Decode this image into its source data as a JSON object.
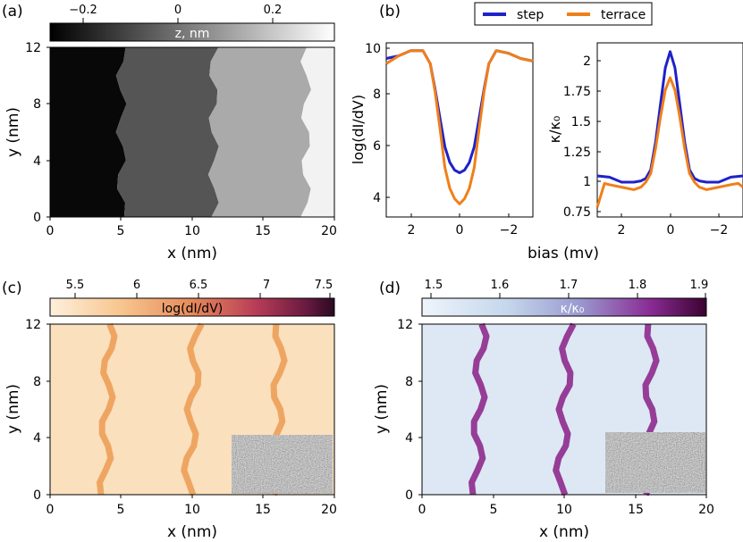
{
  "panel_labels": [
    "(a)",
    "(b)",
    "(c)",
    "(d)"
  ],
  "colors": {
    "step": "#1f22c8",
    "terrace": "#f07f1a",
    "colorbar_c_low": "#fbe7cc",
    "colorbar_c_high": "#2a0a20",
    "colorbar_d_low": "#eef4fb",
    "colorbar_d_high": "#3b0230"
  },
  "chart_data": [
    {
      "type": "heatmap",
      "panel": "(a)",
      "xlabel": "x (nm)",
      "ylabel": "y (nm)",
      "xlim": [
        0,
        20
      ],
      "ylim": [
        0,
        12
      ],
      "xticks": [
        "0",
        "5",
        "10",
        "15",
        "20"
      ],
      "yticks": [
        "0",
        "4",
        "8",
        "12"
      ],
      "colorbar": {
        "label": "z, nm",
        "range": [
          -0.3,
          0.3
        ],
        "ticks": [
          "−0.2",
          "0",
          "0.2"
        ],
        "colormap": "gray"
      },
      "terraces": [
        {
          "x_from": 0,
          "x_to": 5,
          "z": -0.28
        },
        {
          "x_from": 5,
          "x_to": 11.5,
          "z": -0.1
        },
        {
          "x_from": 11.5,
          "x_to": 18,
          "z": 0.1
        },
        {
          "x_from": 18,
          "x_to": 20,
          "z": 0.27
        }
      ]
    },
    {
      "type": "line",
      "panel": "(b) left",
      "ylabel": "log(dI/dV)",
      "xlabel": "bias (mv)",
      "xlim": [
        3,
        -3
      ],
      "ylim": [
        3.3,
        10
      ],
      "xticks": [
        "2",
        "0",
        "−2"
      ],
      "yticks": [
        "4",
        "6",
        "8",
        "10"
      ],
      "legend_position": "top",
      "series": [
        {
          "name": "step",
          "x": [
            3,
            2.5,
            2,
            1.5,
            1.2,
            1,
            0.8,
            0.6,
            0.4,
            0.2,
            0,
            -0.2,
            -0.4,
            -0.6,
            -0.8,
            -1,
            -1.2,
            -1.5,
            -2,
            -2.5,
            -3
          ],
          "values": [
            9.4,
            9.5,
            9.7,
            9.7,
            9.2,
            8.2,
            7.1,
            6.0,
            5.4,
            5.1,
            5.0,
            5.1,
            5.4,
            6.0,
            7.1,
            8.2,
            9.2,
            9.7,
            9.6,
            9.4,
            9.3
          ]
        },
        {
          "name": "terrace",
          "x": [
            3,
            2.5,
            2,
            1.5,
            1.2,
            1,
            0.8,
            0.6,
            0.4,
            0.2,
            0,
            -0.2,
            -0.4,
            -0.6,
            -0.8,
            -1,
            -1.2,
            -1.5,
            -2,
            -2.5,
            -3
          ],
          "values": [
            9.2,
            9.5,
            9.7,
            9.7,
            9.2,
            8.1,
            6.7,
            5.2,
            4.4,
            4.0,
            3.8,
            4.0,
            4.4,
            5.2,
            6.7,
            8.1,
            9.2,
            9.7,
            9.6,
            9.4,
            9.3
          ]
        }
      ]
    },
    {
      "type": "line",
      "panel": "(b) right",
      "ylabel": "κ/κ₀",
      "xlabel": "bias (mv)",
      "xlim": [
        3,
        -3
      ],
      "ylim": [
        0.7,
        2.1
      ],
      "xticks": [
        "2",
        "0",
        "−2"
      ],
      "yticks": [
        "0.75",
        "1",
        "1.25",
        "1.5",
        "1.75",
        "2"
      ],
      "series": [
        {
          "name": "step",
          "x": [
            3,
            2.5,
            2,
            1.5,
            1.2,
            1,
            0.8,
            0.6,
            0.4,
            0.2,
            0,
            -0.2,
            -0.4,
            -0.6,
            -0.8,
            -1,
            -1.2,
            -1.5,
            -2,
            -2.5,
            -3
          ],
          "values": [
            1.03,
            1.02,
            0.98,
            0.98,
            0.99,
            1.01,
            1.08,
            1.3,
            1.6,
            1.9,
            2.03,
            1.9,
            1.6,
            1.3,
            1.08,
            1.01,
            0.99,
            0.98,
            0.98,
            1.02,
            1.03
          ]
        },
        {
          "name": "terrace",
          "x": [
            3,
            2.7,
            2.5,
            2,
            1.5,
            1.2,
            1,
            0.8,
            0.6,
            0.4,
            0.2,
            0,
            -0.2,
            -0.4,
            -0.6,
            -0.8,
            -1,
            -1.2,
            -1.5,
            -2,
            -2.5,
            -2.8,
            -3
          ],
          "values": [
            0.78,
            0.97,
            0.96,
            0.94,
            0.92,
            0.94,
            0.98,
            1.05,
            1.25,
            1.5,
            1.72,
            1.82,
            1.72,
            1.5,
            1.25,
            1.05,
            0.98,
            0.94,
            0.92,
            0.94,
            0.96,
            0.97,
            0.94
          ]
        }
      ]
    },
    {
      "type": "heatmap",
      "panel": "(c)",
      "xlabel": "x (nm)",
      "ylabel": "y (nm)",
      "xlim": [
        0,
        20
      ],
      "ylim": [
        0,
        12
      ],
      "xticks": [
        "0",
        "5",
        "10",
        "15",
        "20"
      ],
      "yticks": [
        "0",
        "4",
        "8",
        "12"
      ],
      "colorbar": {
        "label": "log(dI/dV)",
        "range": [
          5.2,
          7.5
        ],
        "ticks": [
          "5.5",
          "6",
          "6.5",
          "7",
          "7.5"
        ]
      },
      "step_lines_x": [
        4,
        10,
        16
      ],
      "background_value": 5.6,
      "step_value": 6.1,
      "inset": "noise"
    },
    {
      "type": "heatmap",
      "panel": "(d)",
      "xlabel": "x (nm)",
      "ylabel": "y (nm)",
      "xlim": [
        0,
        20
      ],
      "ylim": [
        0,
        12
      ],
      "xticks": [
        "0",
        "5",
        "10",
        "15",
        "20"
      ],
      "yticks": [
        "0",
        "4",
        "8",
        "12"
      ],
      "colorbar": {
        "label": "κ/κ₀",
        "range": [
          1.45,
          1.9
        ],
        "ticks": [
          "1.5",
          "1.6",
          "1.7",
          "1.8",
          "1.9"
        ]
      },
      "step_lines_x": [
        4,
        10,
        16
      ],
      "background_value": 1.5,
      "step_value": 1.85,
      "inset": "noise"
    }
  ]
}
